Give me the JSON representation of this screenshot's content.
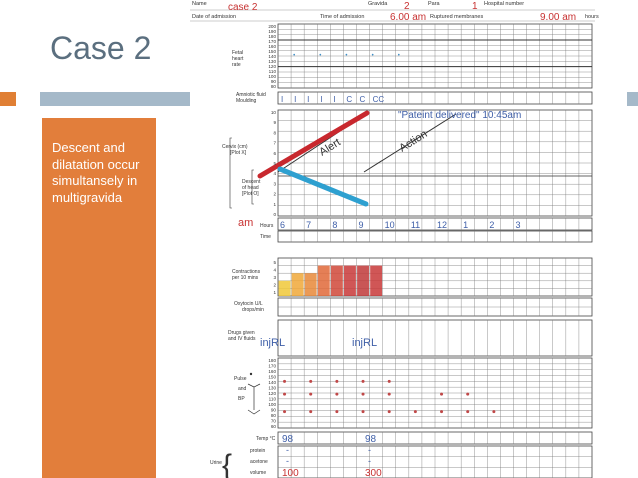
{
  "slide": {
    "title": "Case 2",
    "body_text": "Descent and dilatation occur simultansely in multigravida"
  },
  "form": {
    "name_label": "Name",
    "gravida_label": "Gravida",
    "para_label": "Para",
    "hospital_number_label": "Hospital number",
    "date_admission_label": "Date of admission",
    "time_admission_label": "Time of admission",
    "ruptured_membranes_label": "Ruptured membranes",
    "hours_suffix": "hours",
    "fetal_heart_rate_label": [
      "Fetal",
      "heart",
      "rate"
    ],
    "fhr_ticks": [
      "200",
      "190",
      "180",
      "170",
      "160",
      "150",
      "140",
      "130",
      "120",
      "110",
      "100",
      "90",
      "80"
    ],
    "amniotic_label": [
      "Amniotic fluid",
      "Moulding"
    ],
    "cervix_label": [
      "Cervix (cm)",
      "[Plot X]"
    ],
    "descent_label": [
      "Descent",
      "of head",
      "[Plot O]"
    ],
    "cm_ticks": [
      "10",
      "9",
      "8",
      "7",
      "6",
      "5",
      "4",
      "3",
      "2",
      "1",
      "0"
    ],
    "hours_label": "Hours",
    "time_label": "Time",
    "contractions_label": [
      "Contractions",
      "per 10 mins"
    ],
    "contraction_ticks": [
      "5",
      "4",
      "3",
      "2",
      "1"
    ],
    "oxytocin_label": [
      "Oxytocin U/L",
      "drops/min"
    ],
    "drugs_label": [
      "Drugs given",
      "and IV fluids"
    ],
    "pulse_label": "Pulse",
    "and_label": "and",
    "bp_label": "BP",
    "pulse_ticks": [
      "180",
      "170",
      "160",
      "150",
      "140",
      "130",
      "120",
      "110",
      "100",
      "90",
      "80",
      "70",
      "60"
    ],
    "temp_label": "Temp °C",
    "urine_label": "Urine",
    "protein_label": "protein",
    "acetone_label": "acetone",
    "volume_label": "volume",
    "alert_label": "Alert",
    "action_label": "Action"
  },
  "annotations": {
    "name": "case 2",
    "gravida": "2",
    "para": "1",
    "time_admission": "6.00 am",
    "ruptured_membranes": "9.00 am",
    "moulding_marks": [
      "I",
      "I",
      "I",
      "I",
      "I",
      "C",
      "C",
      "CC"
    ],
    "delivered": "\"Pateint delivered\" 10:45am",
    "am_label": "am",
    "hours": [
      "6",
      "7",
      "8",
      "9",
      "10",
      "11",
      "12",
      "1",
      "2",
      "3"
    ],
    "drug_entry_1": "injRL",
    "drug_entry_2": "injRL",
    "temp_1": "98",
    "temp_2": "98",
    "protein_1": "-",
    "protein_2": "-",
    "acetone_1": "-",
    "acetone_2": "-",
    "volume_1": "100",
    "volume_2": "300"
  },
  "colors": {
    "accent_orange": "#e27e3b",
    "accent_blue_grey": "#a5b9c9",
    "title_grey": "#5b6f7f",
    "handwriting_blue": "#3f5fa8",
    "handwriting_red": "#c83232",
    "dilatation_line": "#c8282e",
    "descent_line": "#2ea0d0",
    "pulse_dot": "#c04848"
  }
}
